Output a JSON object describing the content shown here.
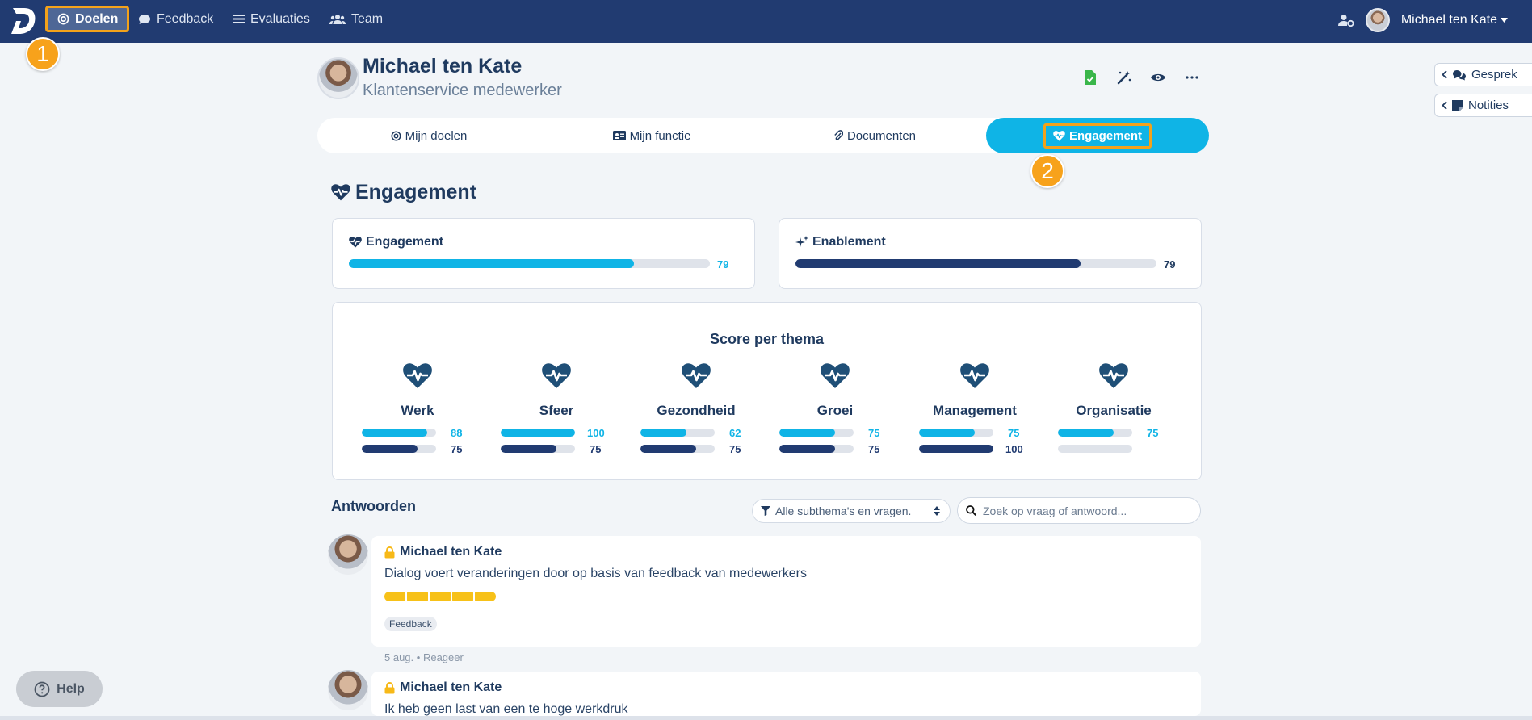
{
  "nav": {
    "items": [
      {
        "label": "Doelen",
        "icon": "target-icon"
      },
      {
        "label": "Feedback",
        "icon": "chat-icon"
      },
      {
        "label": "Evaluaties",
        "icon": "list-icon"
      },
      {
        "label": "Team",
        "icon": "team-icon"
      }
    ],
    "user_name": "Michael ten Kate"
  },
  "markers": [
    "1",
    "2"
  ],
  "profile": {
    "name": "Michael ten Kate",
    "role": "Klantenservice medewerker"
  },
  "side_tabs": [
    {
      "label": "Gesprek"
    },
    {
      "label": "Notities"
    }
  ],
  "tabs": [
    {
      "label": "Mijn doelen"
    },
    {
      "label": "Mijn functie"
    },
    {
      "label": "Documenten"
    },
    {
      "label": "Engagement"
    }
  ],
  "section_title": "Engagement",
  "summary": [
    {
      "label": "Engagement",
      "value": 79,
      "color": "#0fb4e6"
    },
    {
      "label": "Enablement",
      "value": 79,
      "color": "#213b71"
    }
  ],
  "themes": {
    "title": "Score per thema",
    "items": [
      {
        "name": "Werk",
        "engagement": "88",
        "enablement": "75"
      },
      {
        "name": "Sfeer",
        "engagement": "100",
        "enablement": "75"
      },
      {
        "name": "Gezondheid",
        "engagement": "62",
        "enablement": "75"
      },
      {
        "name": "Groei",
        "engagement": "75",
        "enablement": "75"
      },
      {
        "name": "Management",
        "engagement": "75",
        "enablement": "100"
      },
      {
        "name": "Organisatie",
        "engagement": "75",
        "enablement": ""
      }
    ],
    "colors": {
      "engagement": "#0fb4e6",
      "enablement": "#213b71",
      "track": "#dfe3ea"
    }
  },
  "answers": {
    "title": "Antwoorden",
    "filter_value": "Alle subthema's en vragen.",
    "search_placeholder": "Zoek op vraag of antwoord...",
    "items": [
      {
        "name": "Michael ten Kate",
        "question": "Dialog voert veranderingen door op basis van feedback van medewerkers",
        "rating": 5,
        "tag": "Feedback",
        "date": "5 aug.",
        "reply": "Reageer"
      },
      {
        "name": "Michael ten Kate",
        "question": "Ik heb geen last van een te hoge werkdruk"
      }
    ]
  },
  "help_label": "Help"
}
